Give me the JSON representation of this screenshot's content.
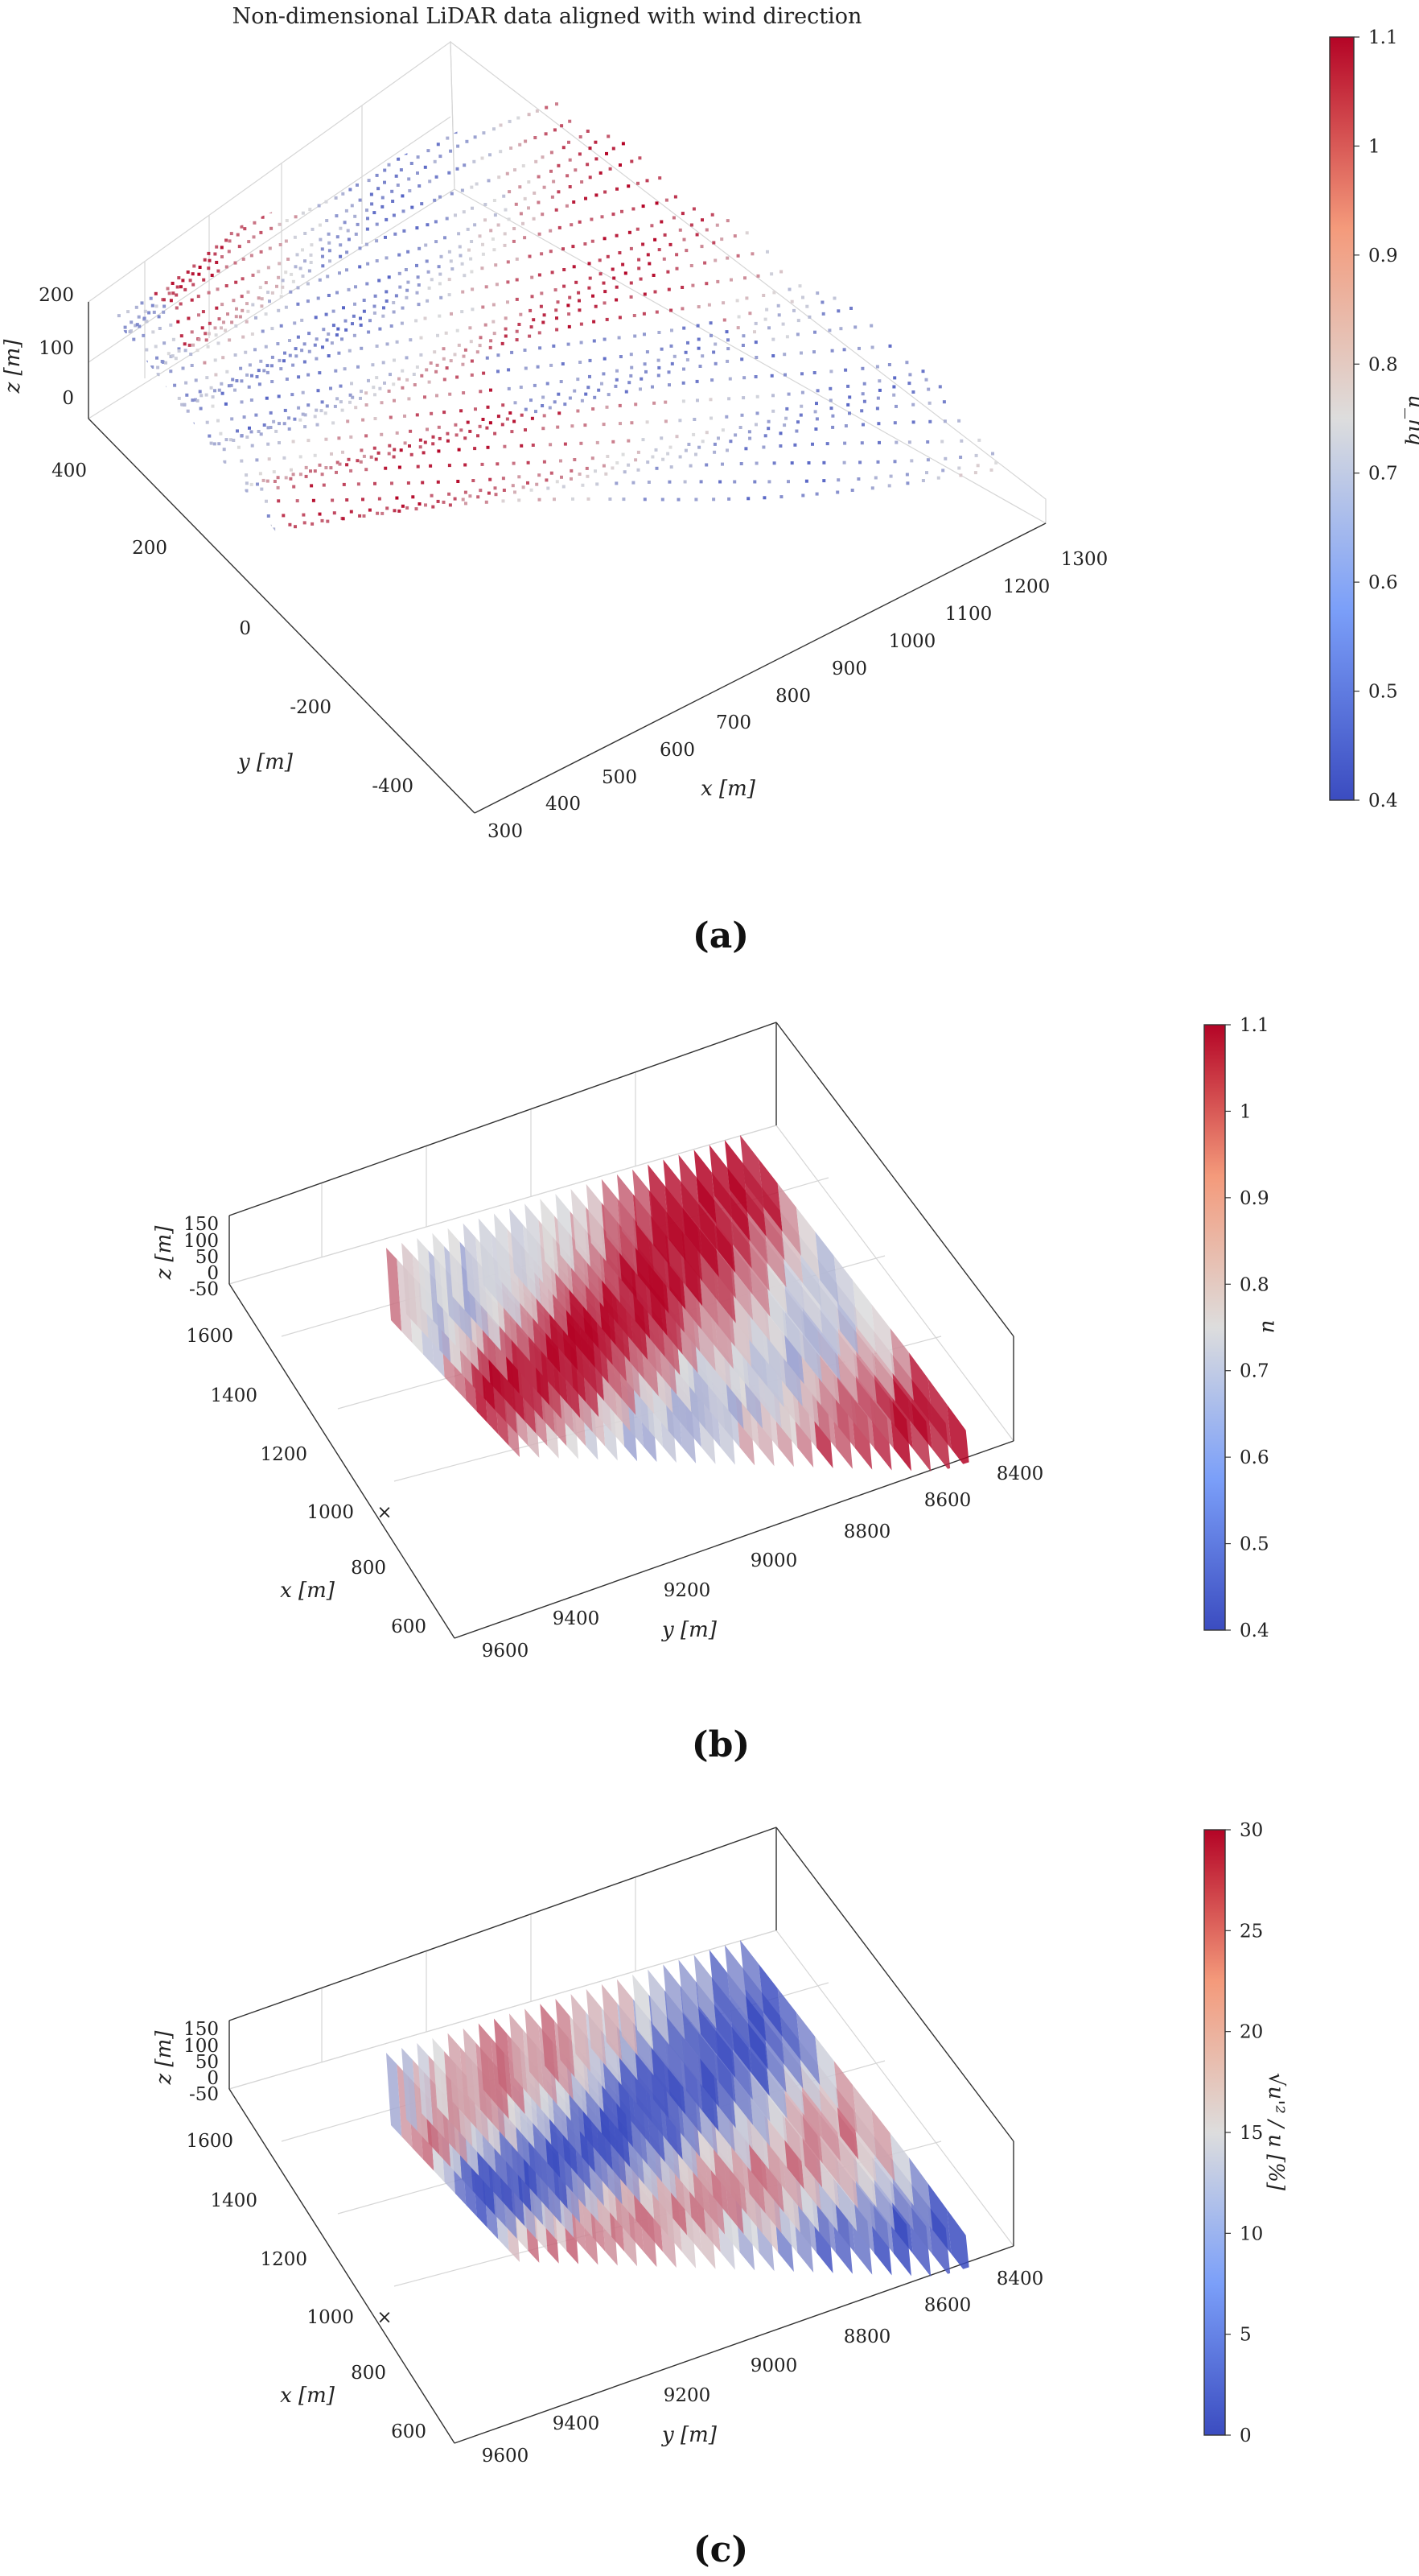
{
  "chart_data": [
    {
      "id": "a",
      "type": "scatter",
      "title": "Non-dimensional LiDAR data aligned with wind direction",
      "panel_label": "(a)",
      "xlabel": "x [m]",
      "ylabel": "y [m]",
      "zlabel": "z [m]",
      "x_ticks": [
        "300",
        "400",
        "500",
        "600",
        "700",
        "800",
        "900",
        "1000",
        "1100",
        "1200",
        "1300"
      ],
      "y_ticks": [
        "-400",
        "-200",
        "0",
        "200",
        "400"
      ],
      "z_ticks": [
        "0",
        "100",
        "200"
      ],
      "xlim": [
        300,
        1300
      ],
      "ylim": [
        -500,
        500
      ],
      "zlim": [
        -50,
        200
      ],
      "colorbar": {
        "label": "u_nq",
        "min": 0.4,
        "max": 1.1,
        "ticks": [
          "0.4",
          "0.5",
          "0.6",
          "0.7",
          "0.8",
          "0.9",
          "1",
          "1.1"
        ]
      },
      "colors": {
        "low": "#3b4cc0",
        "mid": "#dddddd",
        "high": "#b40426"
      }
    },
    {
      "id": "b",
      "type": "scatter",
      "panel_label": "(b)",
      "xlabel": "x [m]",
      "ylabel": "y [m]",
      "zlabel": "z [m]",
      "x_ticks": [
        "600",
        "800",
        "1000",
        "1200",
        "1400",
        "1600"
      ],
      "y_ticks": [
        "9600",
        "9400",
        "9200",
        "9000",
        "8800",
        "8600",
        "8400"
      ],
      "z_ticks": [
        "-50",
        "0",
        "50",
        "100",
        "150"
      ],
      "marker_label": "×",
      "colorbar": {
        "label": "u",
        "min": 0.4,
        "max": 1.1,
        "ticks": [
          "0.4",
          "0.5",
          "0.6",
          "0.7",
          "0.8",
          "0.9",
          "1",
          "1.1"
        ]
      },
      "colors": {
        "low": "#3b4cc0",
        "mid": "#dddddd",
        "high": "#b40426"
      }
    },
    {
      "id": "c",
      "type": "scatter",
      "panel_label": "(c)",
      "xlabel": "x [m]",
      "ylabel": "y [m]",
      "zlabel": "z [m]",
      "x_ticks": [
        "600",
        "800",
        "1000",
        "1200",
        "1400",
        "1600"
      ],
      "y_ticks": [
        "9600",
        "9400",
        "9200",
        "9000",
        "8800",
        "8600",
        "8400"
      ],
      "z_ticks": [
        "-50",
        "0",
        "50",
        "100",
        "150"
      ],
      "marker_label": "×",
      "colorbar": {
        "label": "√u'² / u [%]",
        "min": 0,
        "max": 30,
        "ticks": [
          "0",
          "5",
          "10",
          "15",
          "20",
          "25",
          "30"
        ]
      },
      "colors": {
        "low": "#3b4cc0",
        "mid": "#dddddd",
        "high": "#b40426"
      }
    }
  ]
}
